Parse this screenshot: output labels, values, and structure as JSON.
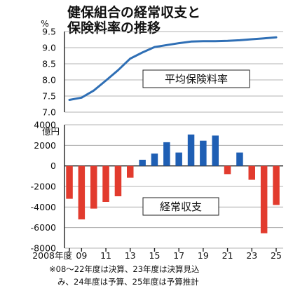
{
  "title": {
    "line1": "健保組合の経常収支と",
    "line2": "保険料率の推移"
  },
  "footnote": {
    "line1": "※08～22年度は決算、23年度は決算見込",
    "line2": "み、24年度は予算、25年度は予算推計"
  },
  "colors": {
    "line": "#2f6fb5",
    "positive_bar": "#1f5fb4",
    "negative_bar": "#e23b2e"
  },
  "chart_data": [
    {
      "type": "line",
      "ylabel": "%",
      "series_label": "平均保険料率",
      "ylim": [
        7.0,
        9.5
      ],
      "yticks": [
        7.0,
        7.5,
        8.0,
        8.5,
        9.0,
        9.5
      ],
      "ytick_labels": [
        "7.0",
        "7.5",
        "8.0",
        "8.5",
        "9.0",
        "9.5"
      ],
      "grid": true,
      "x": [
        2008,
        2009,
        2010,
        2011,
        2012,
        2013,
        2014,
        2015,
        2016,
        2017,
        2018,
        2019,
        2020,
        2021,
        2022,
        2023,
        2024,
        2025
      ],
      "values": [
        7.38,
        7.45,
        7.67,
        7.98,
        8.3,
        8.66,
        8.85,
        9.02,
        9.08,
        9.14,
        9.19,
        9.2,
        9.2,
        9.21,
        9.23,
        9.26,
        9.29,
        9.32
      ]
    },
    {
      "type": "bar",
      "ylabel": "億円",
      "series_label": "経常収支",
      "ylim": [
        -8000,
        4000
      ],
      "yticks": [
        -8000,
        -6000,
        -4000,
        -2000,
        0,
        2000,
        4000
      ],
      "ytick_labels": [
        "-8000",
        "-6000",
        "-4000",
        "-2000",
        "0",
        "2000",
        "4000"
      ],
      "grid": true,
      "x": [
        2008,
        2009,
        2010,
        2011,
        2012,
        2013,
        2014,
        2015,
        2016,
        2017,
        2018,
        2019,
        2020,
        2021,
        2022,
        2023,
        2024,
        2025
      ],
      "values": [
        -3200,
        -5200,
        -4150,
        -3500,
        -2950,
        -1150,
        600,
        1200,
        2300,
        1300,
        3050,
        2450,
        2950,
        -800,
        1300,
        -1350,
        -6550,
        -3800
      ],
      "xtick_years": [
        2008,
        2009,
        2011,
        2013,
        2015,
        2017,
        2019,
        2021,
        2023,
        2025
      ],
      "xtick_labels": [
        "2008年度",
        "09",
        "11",
        "13",
        "15",
        "17",
        "19",
        "21",
        "23",
        "25"
      ]
    }
  ]
}
